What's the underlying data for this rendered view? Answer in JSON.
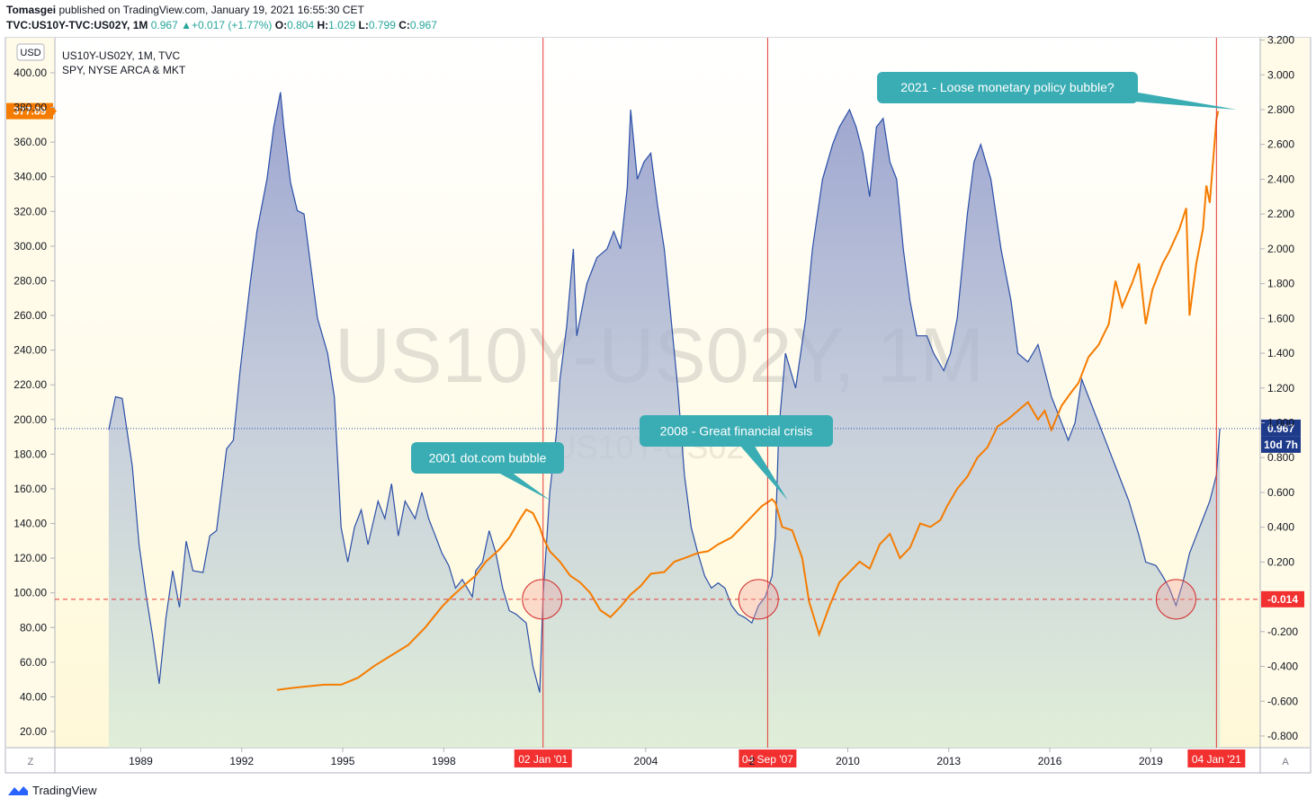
{
  "header": {
    "author": "Tomasgei",
    "published": "published on TradingView.com, January 19, 2021 16:55:30 CET",
    "symbol": "TVC:US10Y-TVC:US02Y, 1M",
    "last": "0.967",
    "change": "+0.017 (+1.77%)",
    "o_label": "O:",
    "o": "0.804",
    "h_label": "H:",
    "h": "1.029",
    "l_label": "L:",
    "l": "0.799",
    "c_label": "C:",
    "c": "0.967"
  },
  "legend": {
    "line1": "US10Y-US02Y, 1M, TVC",
    "line2": "SPY, NYSE ARCA & MKT"
  },
  "watermark": {
    "big": "US10Y-US02Y, 1M",
    "small": "US10Y-US02Y"
  },
  "left_axis": {
    "currency": "USD",
    "ticks": [
      "400.00",
      "380.00",
      "360.00",
      "340.00",
      "320.00",
      "300.00",
      "280.00",
      "260.00",
      "240.00",
      "220.00",
      "200.00",
      "180.00",
      "160.00",
      "140.00",
      "120.00",
      "100.00",
      "80.00",
      "60.00",
      "40.00",
      "20.00"
    ],
    "marker": "377.89"
  },
  "right_axis": {
    "ticks": [
      "3.200",
      "3.000",
      "2.800",
      "2.600",
      "2.400",
      "2.200",
      "2.000",
      "1.800",
      "1.600",
      "1.400",
      "1.200",
      "1.000",
      "0.800",
      "0.600",
      "0.400",
      "0.200",
      "-0.200",
      "-0.400",
      "-0.600",
      "-0.800"
    ],
    "marker_last": "0.967",
    "marker_time": "10d 7h",
    "marker_zero": "-0.014"
  },
  "x_axis": {
    "ticks": [
      "1989",
      "1992",
      "1995",
      "1998",
      "2004",
      "2010",
      "2013",
      "2016",
      "2019"
    ],
    "highlight_labels": [
      "02 Jan '01",
      "04 Sep '07",
      "04 Jan '21"
    ],
    "partial_label": "2"
  },
  "corner_labels": {
    "z": "Z",
    "a": "A"
  },
  "callouts": [
    {
      "text": "2001 dot.com bubble"
    },
    {
      "text": "2008 - Great financial crisis"
    },
    {
      "text": "2021 - Loose monetary policy bubble?"
    }
  ],
  "footer": {
    "brand": "TradingView"
  },
  "colors": {
    "spread_line": "#2b4fa8",
    "spy_line": "#f57c00",
    "event_line": "#e53935",
    "callout": "#3aadb4",
    "zero_line": "#e53935"
  },
  "chart_data": {
    "type": "line",
    "title": "",
    "x_range": [
      1986.5,
      2022.3
    ],
    "series": [
      {
        "name": "US10Y-US02Y, 1M, TVC",
        "axis": "right",
        "points": [
          [
            1988.1,
            0.96
          ],
          [
            1988.3,
            1.15
          ],
          [
            1988.5,
            1.14
          ],
          [
            1988.8,
            0.75
          ],
          [
            1989.0,
            0.3
          ],
          [
            1989.2,
            0.02
          ],
          [
            1989.4,
            -0.22
          ],
          [
            1989.6,
            -0.5
          ],
          [
            1989.8,
            -0.12
          ],
          [
            1990.0,
            0.15
          ],
          [
            1990.2,
            -0.06
          ],
          [
            1990.4,
            0.32
          ],
          [
            1990.6,
            0.15
          ],
          [
            1990.9,
            0.14
          ],
          [
            1991.1,
            0.35
          ],
          [
            1991.3,
            0.38
          ],
          [
            1991.6,
            0.85
          ],
          [
            1991.8,
            0.9
          ],
          [
            1992.0,
            1.3
          ],
          [
            1992.3,
            1.8
          ],
          [
            1992.5,
            2.1
          ],
          [
            1992.8,
            2.4
          ],
          [
            1993.0,
            2.7
          ],
          [
            1993.2,
            2.9
          ],
          [
            1993.3,
            2.7
          ],
          [
            1993.5,
            2.38
          ],
          [
            1993.7,
            2.22
          ],
          [
            1993.9,
            2.2
          ],
          [
            1994.1,
            1.9
          ],
          [
            1994.3,
            1.6
          ],
          [
            1994.6,
            1.4
          ],
          [
            1994.8,
            1.15
          ],
          [
            1995.0,
            0.4
          ],
          [
            1995.2,
            0.2
          ],
          [
            1995.4,
            0.4
          ],
          [
            1995.6,
            0.5
          ],
          [
            1995.8,
            0.3
          ],
          [
            1996.1,
            0.55
          ],
          [
            1996.3,
            0.45
          ],
          [
            1996.5,
            0.65
          ],
          [
            1996.7,
            0.35
          ],
          [
            1996.9,
            0.55
          ],
          [
            1997.2,
            0.45
          ],
          [
            1997.4,
            0.6
          ],
          [
            1997.6,
            0.45
          ],
          [
            1997.8,
            0.35
          ],
          [
            1998.0,
            0.25
          ],
          [
            1998.2,
            0.18
          ],
          [
            1998.4,
            0.05
          ],
          [
            1998.6,
            0.1
          ],
          [
            1998.9,
            0.0
          ],
          [
            1999.0,
            0.15
          ],
          [
            1999.2,
            0.2
          ],
          [
            1999.4,
            0.38
          ],
          [
            1999.6,
            0.25
          ],
          [
            1999.8,
            0.05
          ],
          [
            2000.0,
            -0.08
          ],
          [
            2000.2,
            -0.1
          ],
          [
            2000.5,
            -0.15
          ],
          [
            2000.7,
            -0.4
          ],
          [
            2000.9,
            -0.55
          ],
          [
            2001.0,
            0.0
          ],
          [
            2001.2,
            0.6
          ],
          [
            2001.4,
            0.95
          ],
          [
            2001.5,
            1.25
          ],
          [
            2001.7,
            1.55
          ],
          [
            2001.9,
            2.0
          ],
          [
            2002.0,
            1.5
          ],
          [
            2002.3,
            1.8
          ],
          [
            2002.6,
            1.95
          ],
          [
            2002.9,
            2.0
          ],
          [
            2003.1,
            2.1
          ],
          [
            2003.3,
            2.0
          ],
          [
            2003.5,
            2.35
          ],
          [
            2003.6,
            2.8
          ],
          [
            2003.8,
            2.4
          ],
          [
            2004.0,
            2.5
          ],
          [
            2004.2,
            2.55
          ],
          [
            2004.4,
            2.25
          ],
          [
            2004.6,
            2.0
          ],
          [
            2004.8,
            1.6
          ],
          [
            2005.0,
            1.2
          ],
          [
            2005.2,
            0.7
          ],
          [
            2005.4,
            0.4
          ],
          [
            2005.6,
            0.25
          ],
          [
            2005.8,
            0.12
          ],
          [
            2006.0,
            0.05
          ],
          [
            2006.2,
            0.08
          ],
          [
            2006.4,
            0.05
          ],
          [
            2006.6,
            -0.05
          ],
          [
            2006.8,
            -0.1
          ],
          [
            2007.0,
            -0.12
          ],
          [
            2007.2,
            -0.15
          ],
          [
            2007.4,
            -0.05
          ],
          [
            2007.6,
            0.0
          ],
          [
            2007.8,
            0.12
          ],
          [
            2007.9,
            0.35
          ],
          [
            2008.0,
            0.95
          ],
          [
            2008.2,
            1.4
          ],
          [
            2008.5,
            1.2
          ],
          [
            2008.8,
            1.6
          ],
          [
            2009.0,
            2.0
          ],
          [
            2009.3,
            2.4
          ],
          [
            2009.6,
            2.6
          ],
          [
            2009.8,
            2.7
          ],
          [
            2010.1,
            2.8
          ],
          [
            2010.3,
            2.7
          ],
          [
            2010.5,
            2.55
          ],
          [
            2010.7,
            2.3
          ],
          [
            2010.9,
            2.7
          ],
          [
            2011.1,
            2.75
          ],
          [
            2011.3,
            2.5
          ],
          [
            2011.5,
            2.4
          ],
          [
            2011.7,
            2.0
          ],
          [
            2011.9,
            1.7
          ],
          [
            2012.1,
            1.5
          ],
          [
            2012.4,
            1.5
          ],
          [
            2012.6,
            1.4
          ],
          [
            2012.9,
            1.3
          ],
          [
            2013.1,
            1.4
          ],
          [
            2013.3,
            1.6
          ],
          [
            2013.6,
            2.2
          ],
          [
            2013.8,
            2.5
          ],
          [
            2014.0,
            2.6
          ],
          [
            2014.3,
            2.4
          ],
          [
            2014.6,
            2.0
          ],
          [
            2014.9,
            1.7
          ],
          [
            2015.1,
            1.4
          ],
          [
            2015.4,
            1.35
          ],
          [
            2015.7,
            1.45
          ],
          [
            2015.9,
            1.3
          ],
          [
            2016.1,
            1.15
          ],
          [
            2016.4,
            1.0
          ],
          [
            2016.6,
            0.9
          ],
          [
            2016.8,
            1.0
          ],
          [
            2017.0,
            1.25
          ],
          [
            2017.3,
            1.1
          ],
          [
            2017.6,
            0.95
          ],
          [
            2017.9,
            0.8
          ],
          [
            2018.1,
            0.7
          ],
          [
            2018.4,
            0.55
          ],
          [
            2018.7,
            0.35
          ],
          [
            2018.9,
            0.2
          ],
          [
            2019.2,
            0.18
          ],
          [
            2019.4,
            0.12
          ],
          [
            2019.6,
            0.05
          ],
          [
            2019.7,
            0.0
          ],
          [
            2019.8,
            -0.05
          ],
          [
            2020.0,
            0.08
          ],
          [
            2020.2,
            0.25
          ],
          [
            2020.4,
            0.35
          ],
          [
            2020.6,
            0.45
          ],
          [
            2020.8,
            0.55
          ],
          [
            2021.0,
            0.7
          ],
          [
            2021.1,
            0.967
          ]
        ]
      },
      {
        "name": "SPY, NYSE ARCA & MKT",
        "axis": "left",
        "points": [
          [
            1993.1,
            44
          ],
          [
            1993.5,
            45
          ],
          [
            1994.0,
            46
          ],
          [
            1994.5,
            47
          ],
          [
            1995.0,
            47
          ],
          [
            1995.5,
            51
          ],
          [
            1996.0,
            58
          ],
          [
            1996.5,
            64
          ],
          [
            1997.0,
            70
          ],
          [
            1997.5,
            80
          ],
          [
            1998.0,
            92
          ],
          [
            1998.3,
            98
          ],
          [
            1998.7,
            105
          ],
          [
            1999.0,
            110
          ],
          [
            1999.3,
            118
          ],
          [
            1999.7,
            125
          ],
          [
            2000.0,
            132
          ],
          [
            2000.3,
            142
          ],
          [
            2000.5,
            148
          ],
          [
            2000.7,
            146
          ],
          [
            2000.9,
            138
          ],
          [
            2001.0,
            132
          ],
          [
            2001.2,
            124
          ],
          [
            2001.5,
            118
          ],
          [
            2001.8,
            110
          ],
          [
            2002.1,
            106
          ],
          [
            2002.4,
            100
          ],
          [
            2002.7,
            90
          ],
          [
            2003.0,
            86
          ],
          [
            2003.3,
            92
          ],
          [
            2003.6,
            99
          ],
          [
            2003.9,
            104
          ],
          [
            2004.2,
            111
          ],
          [
            2004.6,
            112
          ],
          [
            2004.9,
            118
          ],
          [
            2005.2,
            120
          ],
          [
            2005.6,
            123
          ],
          [
            2005.9,
            124
          ],
          [
            2006.2,
            128
          ],
          [
            2006.6,
            132
          ],
          [
            2006.9,
            138
          ],
          [
            2007.2,
            144
          ],
          [
            2007.5,
            150
          ],
          [
            2007.8,
            154
          ],
          [
            2007.9,
            152
          ],
          [
            2008.1,
            138
          ],
          [
            2008.4,
            136
          ],
          [
            2008.7,
            120
          ],
          [
            2008.9,
            95
          ],
          [
            2009.2,
            76
          ],
          [
            2009.5,
            92
          ],
          [
            2009.8,
            106
          ],
          [
            2010.0,
            110
          ],
          [
            2010.4,
            118
          ],
          [
            2010.7,
            114
          ],
          [
            2011.0,
            128
          ],
          [
            2011.3,
            134
          ],
          [
            2011.6,
            120
          ],
          [
            2011.9,
            126
          ],
          [
            2012.2,
            140
          ],
          [
            2012.5,
            138
          ],
          [
            2012.8,
            142
          ],
          [
            2013.0,
            150
          ],
          [
            2013.3,
            160
          ],
          [
            2013.6,
            167
          ],
          [
            2013.9,
            178
          ],
          [
            2014.2,
            184
          ],
          [
            2014.5,
            196
          ],
          [
            2014.8,
            200
          ],
          [
            2015.1,
            205
          ],
          [
            2015.4,
            210
          ],
          [
            2015.7,
            200
          ],
          [
            2015.9,
            205
          ],
          [
            2016.1,
            194
          ],
          [
            2016.4,
            208
          ],
          [
            2016.7,
            216
          ],
          [
            2016.9,
            221
          ],
          [
            2017.2,
            236
          ],
          [
            2017.5,
            243
          ],
          [
            2017.8,
            255
          ],
          [
            2018.0,
            280
          ],
          [
            2018.2,
            265
          ],
          [
            2018.5,
            279
          ],
          [
            2018.7,
            290
          ],
          [
            2018.9,
            255
          ],
          [
            2019.1,
            275
          ],
          [
            2019.4,
            290
          ],
          [
            2019.6,
            297
          ],
          [
            2019.9,
            310
          ],
          [
            2020.1,
            322
          ],
          [
            2020.2,
            260
          ],
          [
            2020.4,
            290
          ],
          [
            2020.6,
            310
          ],
          [
            2020.7,
            335
          ],
          [
            2020.8,
            325
          ],
          [
            2021.0,
            373
          ],
          [
            2021.05,
            377.89
          ]
        ]
      }
    ],
    "left_range": [
      10,
      410
    ],
    "right_range": [
      -0.9,
      3.2
    ],
    "events": [
      "2001-01-02",
      "2007-09-04",
      "2021-01-04"
    ],
    "grid": false
  }
}
